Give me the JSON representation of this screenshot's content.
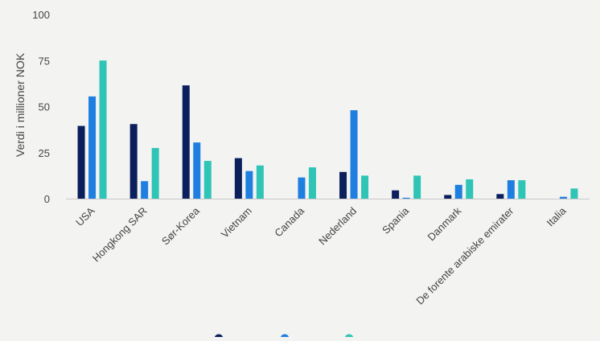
{
  "chart_data": {
    "type": "bar",
    "title": "",
    "xlabel": "",
    "ylabel": "Verdi i millioner NOK",
    "ylim": [
      0,
      100
    ],
    "yticks": [
      0,
      25,
      50,
      75,
      100
    ],
    "categories": [
      "USA",
      "Hongkong SAR",
      "Sør-Korea",
      "Vietnam",
      "Canada",
      "Nederland",
      "Spania",
      "Danmark",
      "De forente arabiske emirater",
      "Italia"
    ],
    "series": [
      {
        "color": "#0b1f5c",
        "values": [
          39.5,
          40.5,
          61.5,
          22,
          0,
          14.5,
          4.5,
          2,
          2.5,
          0
        ]
      },
      {
        "color": "#1f7fe0",
        "values": [
          55.5,
          9.5,
          30.5,
          15,
          11.5,
          48,
          0.5,
          7.5,
          10,
          1
        ]
      },
      {
        "color": "#2ec4b6",
        "values": [
          75,
          27.5,
          20.5,
          18,
          17,
          12.5,
          12.5,
          10.5,
          10,
          5.5
        ]
      }
    ],
    "grid": false,
    "legend_position": "bottom"
  }
}
